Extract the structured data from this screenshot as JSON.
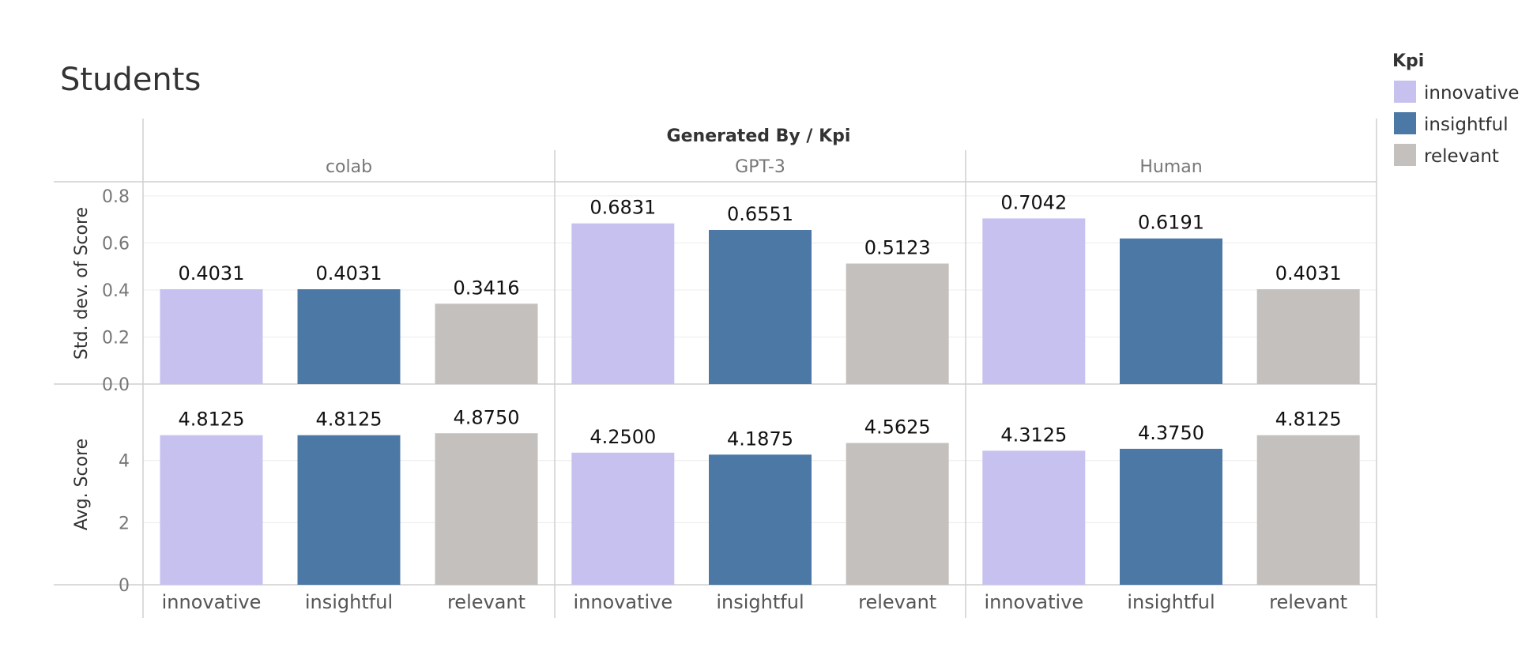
{
  "chart_data": {
    "type": "bar",
    "title": "Students",
    "column_header": "Generated By  /  Kpi",
    "groups": [
      "colab",
      "GPT-3",
      "Human"
    ],
    "categories": [
      "innovative",
      "insightful",
      "relevant"
    ],
    "colors": {
      "innovative": "#c6c1ef",
      "insightful": "#4c78a6",
      "relevant": "#c4c0bd"
    },
    "legend": {
      "title": "Kpi",
      "placement": "top-right",
      "items": [
        "innovative",
        "insightful",
        "relevant"
      ]
    },
    "panels": [
      {
        "measure": "Std. dev. of Score",
        "ylabel": "Std. dev. of Score",
        "ylim": [
          0,
          0.85
        ],
        "ticks": [
          "0.0",
          "0.2",
          "0.4",
          "0.6",
          "0.8"
        ],
        "tick_values": [
          0,
          0.2,
          0.4,
          0.6,
          0.8
        ],
        "values": {
          "colab": [
            0.4031,
            0.4031,
            0.3416
          ],
          "GPT-3": [
            0.6831,
            0.6551,
            0.5123
          ],
          "Human": [
            0.7042,
            0.6191,
            0.4031
          ]
        },
        "labels": {
          "colab": [
            "0.4031",
            "0.4031",
            "0.3416"
          ],
          "GPT-3": [
            "0.6831",
            "0.6551",
            "0.5123"
          ],
          "Human": [
            "0.7042",
            "0.6191",
            "0.4031"
          ]
        }
      },
      {
        "measure": "Avg. Score",
        "ylabel": "Avg. Score",
        "ylim": [
          0,
          6
        ],
        "ticks": [
          "0",
          "2",
          "4"
        ],
        "tick_values": [
          0,
          2,
          4
        ],
        "values": {
          "colab": [
            4.8125,
            4.8125,
            4.875
          ],
          "GPT-3": [
            4.25,
            4.1875,
            4.5625
          ],
          "Human": [
            4.3125,
            4.375,
            4.8125
          ]
        },
        "labels": {
          "colab": [
            "4.8125",
            "4.8125",
            "4.8750"
          ],
          "GPT-3": [
            "4.2500",
            "4.1875",
            "4.5625"
          ],
          "Human": [
            "4.3125",
            "4.3750",
            "4.8125"
          ]
        }
      }
    ],
    "grid": true
  }
}
